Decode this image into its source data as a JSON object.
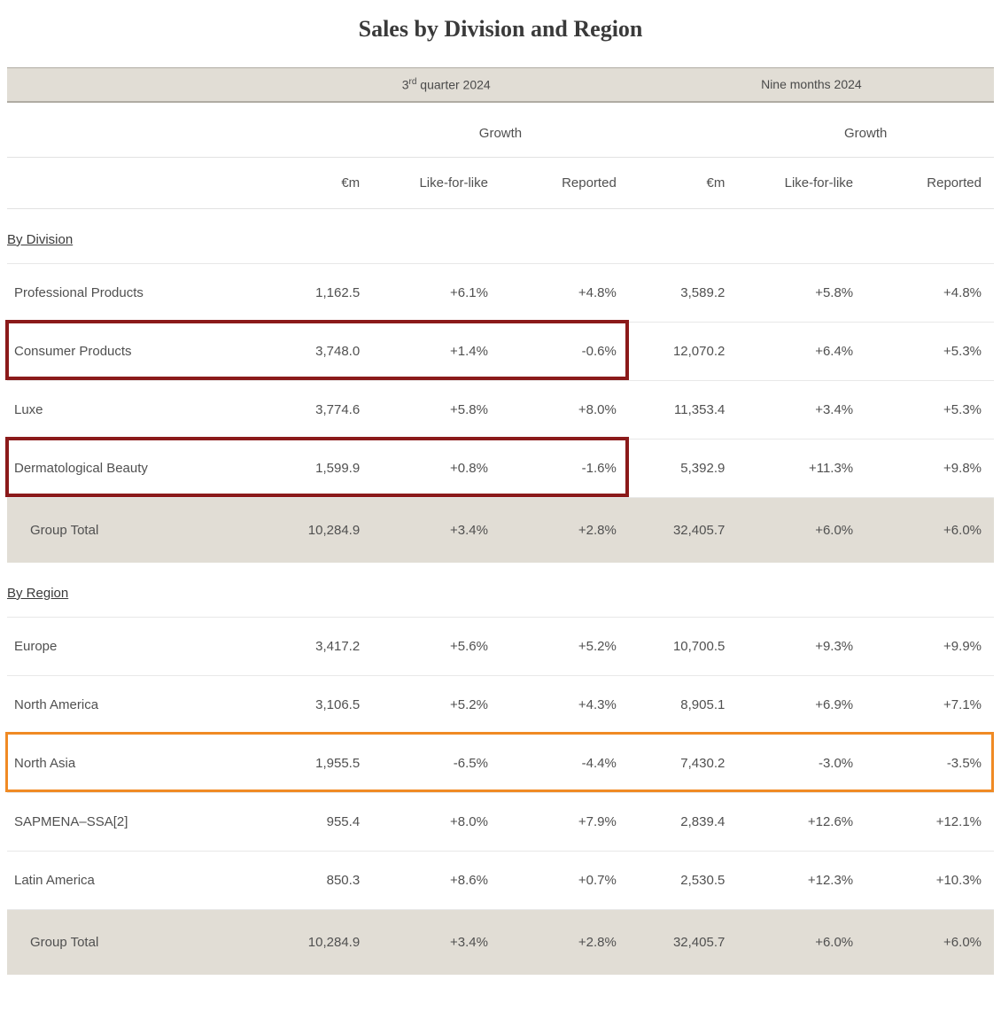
{
  "title": "Sales by Division and Region",
  "periods": {
    "q3": {
      "ordinal": "3",
      "ordinal_suffix": "rd",
      "rest": " quarter 2024"
    },
    "nm": "Nine months 2024"
  },
  "growth_label": "Growth",
  "column_labels": {
    "amount": "€m",
    "lfl": "Like-for-like",
    "reported": "Reported"
  },
  "sections": {
    "division": {
      "heading": "By Division",
      "rows": [
        {
          "label": "Professional Products",
          "q3": {
            "amt": "1,162.5",
            "lfl": "+6.1%",
            "rep": "+4.8%"
          },
          "nm": {
            "amt": "3,589.2",
            "lfl": "+5.8%",
            "rep": "+4.8%"
          }
        },
        {
          "label": "Consumer Products",
          "q3": {
            "amt": "3,748.0",
            "lfl": "+1.4%",
            "rep": "-0.6%"
          },
          "nm": {
            "amt": "12,070.2",
            "lfl": "+6.4%",
            "rep": "+5.3%"
          }
        },
        {
          "label": "Luxe",
          "q3": {
            "amt": "3,774.6",
            "lfl": "+5.8%",
            "rep": "+8.0%"
          },
          "nm": {
            "amt": "11,353.4",
            "lfl": "+3.4%",
            "rep": "+5.3%"
          }
        },
        {
          "label": "Dermatological Beauty",
          "q3": {
            "amt": "1,599.9",
            "lfl": "+0.8%",
            "rep": "-1.6%"
          },
          "nm": {
            "amt": "5,392.9",
            "lfl": "+11.3%",
            "rep": "+9.8%"
          }
        }
      ],
      "total": {
        "label": "Group Total",
        "q3": {
          "amt": "10,284.9",
          "lfl": "+3.4%",
          "rep": "+2.8%"
        },
        "nm": {
          "amt": "32,405.7",
          "lfl": "+6.0%",
          "rep": "+6.0%"
        }
      }
    },
    "region": {
      "heading": "By Region",
      "rows": [
        {
          "label": "Europe",
          "q3": {
            "amt": "3,417.2",
            "lfl": "+5.6%",
            "rep": "+5.2%"
          },
          "nm": {
            "amt": "10,700.5",
            "lfl": "+9.3%",
            "rep": "+9.9%"
          }
        },
        {
          "label": "North America",
          "q3": {
            "amt": "3,106.5",
            "lfl": "+5.2%",
            "rep": "+4.3%"
          },
          "nm": {
            "amt": "8,905.1",
            "lfl": "+6.9%",
            "rep": "+7.1%"
          }
        },
        {
          "label": "North Asia",
          "q3": {
            "amt": "1,955.5",
            "lfl": "-6.5%",
            "rep": "-4.4%"
          },
          "nm": {
            "amt": "7,430.2",
            "lfl": "-3.0%",
            "rep": "-3.5%"
          }
        },
        {
          "label": "SAPMENA–SSA[2]",
          "q3": {
            "amt": "955.4",
            "lfl": "+8.0%",
            "rep": "+7.9%"
          },
          "nm": {
            "amt": "2,839.4",
            "lfl": "+12.6%",
            "rep": "+12.1%"
          }
        },
        {
          "label": "Latin America",
          "q3": {
            "amt": "850.3",
            "lfl": "+8.6%",
            "rep": "+0.7%"
          },
          "nm": {
            "amt": "2,530.5",
            "lfl": "+12.3%",
            "rep": "+10.3%"
          }
        }
      ],
      "total": {
        "label": "Group Total",
        "q3": {
          "amt": "10,284.9",
          "lfl": "+3.4%",
          "rep": "+2.8%"
        },
        "nm": {
          "amt": "32,405.7",
          "lfl": "+6.0%",
          "rep": "+6.0%"
        }
      }
    }
  },
  "colors": {
    "header_bg": "#e1ddd5",
    "header_border": "#b0aca3",
    "row_border": "#e8e8e8",
    "text": "#505050",
    "title": "#3a3a3a",
    "highlight_darkred": "#8b1a1a",
    "highlight_orange": "#f08a24"
  },
  "highlights": [
    {
      "target": "division",
      "row_index": 1,
      "col_span": "q3",
      "color": "#8b1a1a",
      "border_width": 4
    },
    {
      "target": "division",
      "row_index": 3,
      "col_span": "q3",
      "color": "#8b1a1a",
      "border_width": 4
    },
    {
      "target": "region",
      "row_index": 2,
      "col_span": "all",
      "color": "#f08a24",
      "border_width": 3
    }
  ],
  "layout": {
    "col_widths_pct": [
      26,
      11,
      13,
      13,
      11,
      13,
      13
    ],
    "title_fontsize": 26,
    "body_fontsize": 15
  }
}
